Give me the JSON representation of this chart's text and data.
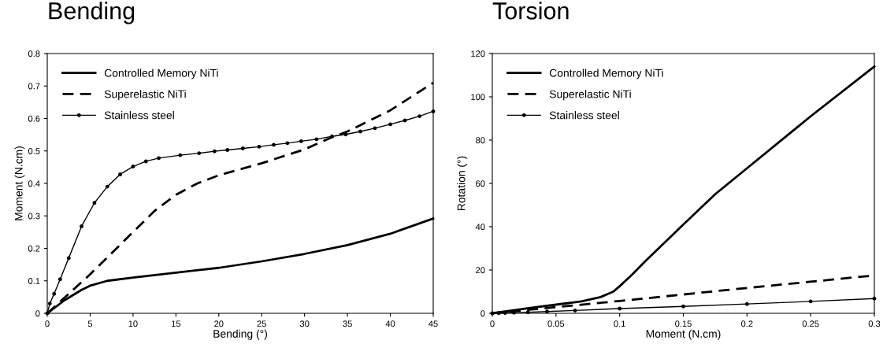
{
  "chart_data": [
    {
      "type": "line",
      "title": "Bending",
      "xlabel": "Bending (°)",
      "ylabel": "Moment (N.cm)",
      "xlim": [
        0,
        45
      ],
      "xticks": [
        0,
        5,
        10,
        15,
        20,
        25,
        30,
        35,
        40,
        45
      ],
      "ylim": [
        0,
        0.8
      ],
      "yticks": [
        0,
        0.1,
        0.2,
        0.3,
        0.4,
        0.5,
        0.6,
        0.7,
        0.8
      ],
      "grid": false,
      "legend": "top left",
      "series": [
        {
          "name": "Controlled Memory NiTi",
          "color": "#000000",
          "line_style": "solid",
          "marker": "none",
          "x": [
            0,
            2,
            4,
            5,
            7,
            10,
            15,
            20,
            25,
            30,
            35,
            40,
            45
          ],
          "values": [
            0,
            0.04,
            0.072,
            0.085,
            0.1,
            0.11,
            0.125,
            0.14,
            0.16,
            0.183,
            0.21,
            0.245,
            0.292
          ]
        },
        {
          "name": "Superelastic NiTi",
          "color": "#000000",
          "line_style": "dashed",
          "marker": "none",
          "x": [
            0,
            2.5,
            5,
            7.5,
            10,
            12.5,
            15,
            17.5,
            20,
            25,
            30,
            33,
            35,
            40,
            45
          ],
          "values": [
            0,
            0.06,
            0.12,
            0.185,
            0.25,
            0.315,
            0.365,
            0.4,
            0.425,
            0.462,
            0.505,
            0.54,
            0.56,
            0.625,
            0.71
          ]
        },
        {
          "name": "Stainless steel",
          "color": "#000000",
          "line_style": "solid",
          "marker": "circle",
          "x": [
            0,
            0.3,
            0.8,
            1.5,
            2.5,
            4,
            5.5,
            7,
            8.5,
            10,
            11.5,
            13,
            15.5,
            17.7,
            19.5,
            21,
            22.8,
            24.7,
            26.4,
            28,
            29.6,
            31.4,
            33.2,
            34.8,
            36.5,
            38.2,
            40,
            41.7,
            43.4,
            45
          ],
          "values": [
            0,
            0.03,
            0.06,
            0.105,
            0.17,
            0.268,
            0.34,
            0.39,
            0.428,
            0.452,
            0.468,
            0.478,
            0.487,
            0.493,
            0.499,
            0.503,
            0.508,
            0.513,
            0.519,
            0.524,
            0.53,
            0.536,
            0.545,
            0.551,
            0.56,
            0.57,
            0.582,
            0.594,
            0.607,
            0.622
          ]
        }
      ]
    },
    {
      "type": "line",
      "title": "Torsion",
      "xlabel": "Moment (N.cm)",
      "ylabel": "Rotation (°)",
      "xlim": [
        0,
        0.3
      ],
      "xticks": [
        0,
        0.05,
        0.1,
        0.15,
        0.2,
        0.25,
        0.3
      ],
      "ylim": [
        0,
        120
      ],
      "yticks": [
        0,
        20,
        40,
        60,
        80,
        100,
        120
      ],
      "grid": false,
      "legend": "top left",
      "series": [
        {
          "name": "Controlled Memory NiTi",
          "color": "#000000",
          "line_style": "solid",
          "marker": "none",
          "x": [
            0,
            0.03,
            0.05,
            0.07,
            0.085,
            0.095,
            0.1,
            0.11,
            0.12,
            0.15,
            0.175,
            0.2,
            0.25,
            0.3
          ],
          "values": [
            0,
            2.5,
            4,
            5.5,
            7.5,
            10,
            12.5,
            18,
            24,
            41,
            55,
            67,
            91,
            114
          ]
        },
        {
          "name": "Superelastic NiTi",
          "color": "#000000",
          "line_style": "dashed",
          "marker": "none",
          "x": [
            0,
            0.1,
            0.2,
            0.3
          ],
          "values": [
            0,
            5.7,
            11.7,
            17.5
          ]
        },
        {
          "name": "Stainless steel",
          "color": "#000000",
          "line_style": "solid",
          "marker": "circle",
          "x": [
            0,
            0.005,
            0.01,
            0.017,
            0.028,
            0.043,
            0.065,
            0.1,
            0.15,
            0.2,
            0.25,
            0.3
          ],
          "values": [
            0,
            0.1,
            0.2,
            0.3,
            0.5,
            0.8,
            1.3,
            2.2,
            3.2,
            4.3,
            5.5,
            6.8
          ]
        }
      ]
    }
  ]
}
